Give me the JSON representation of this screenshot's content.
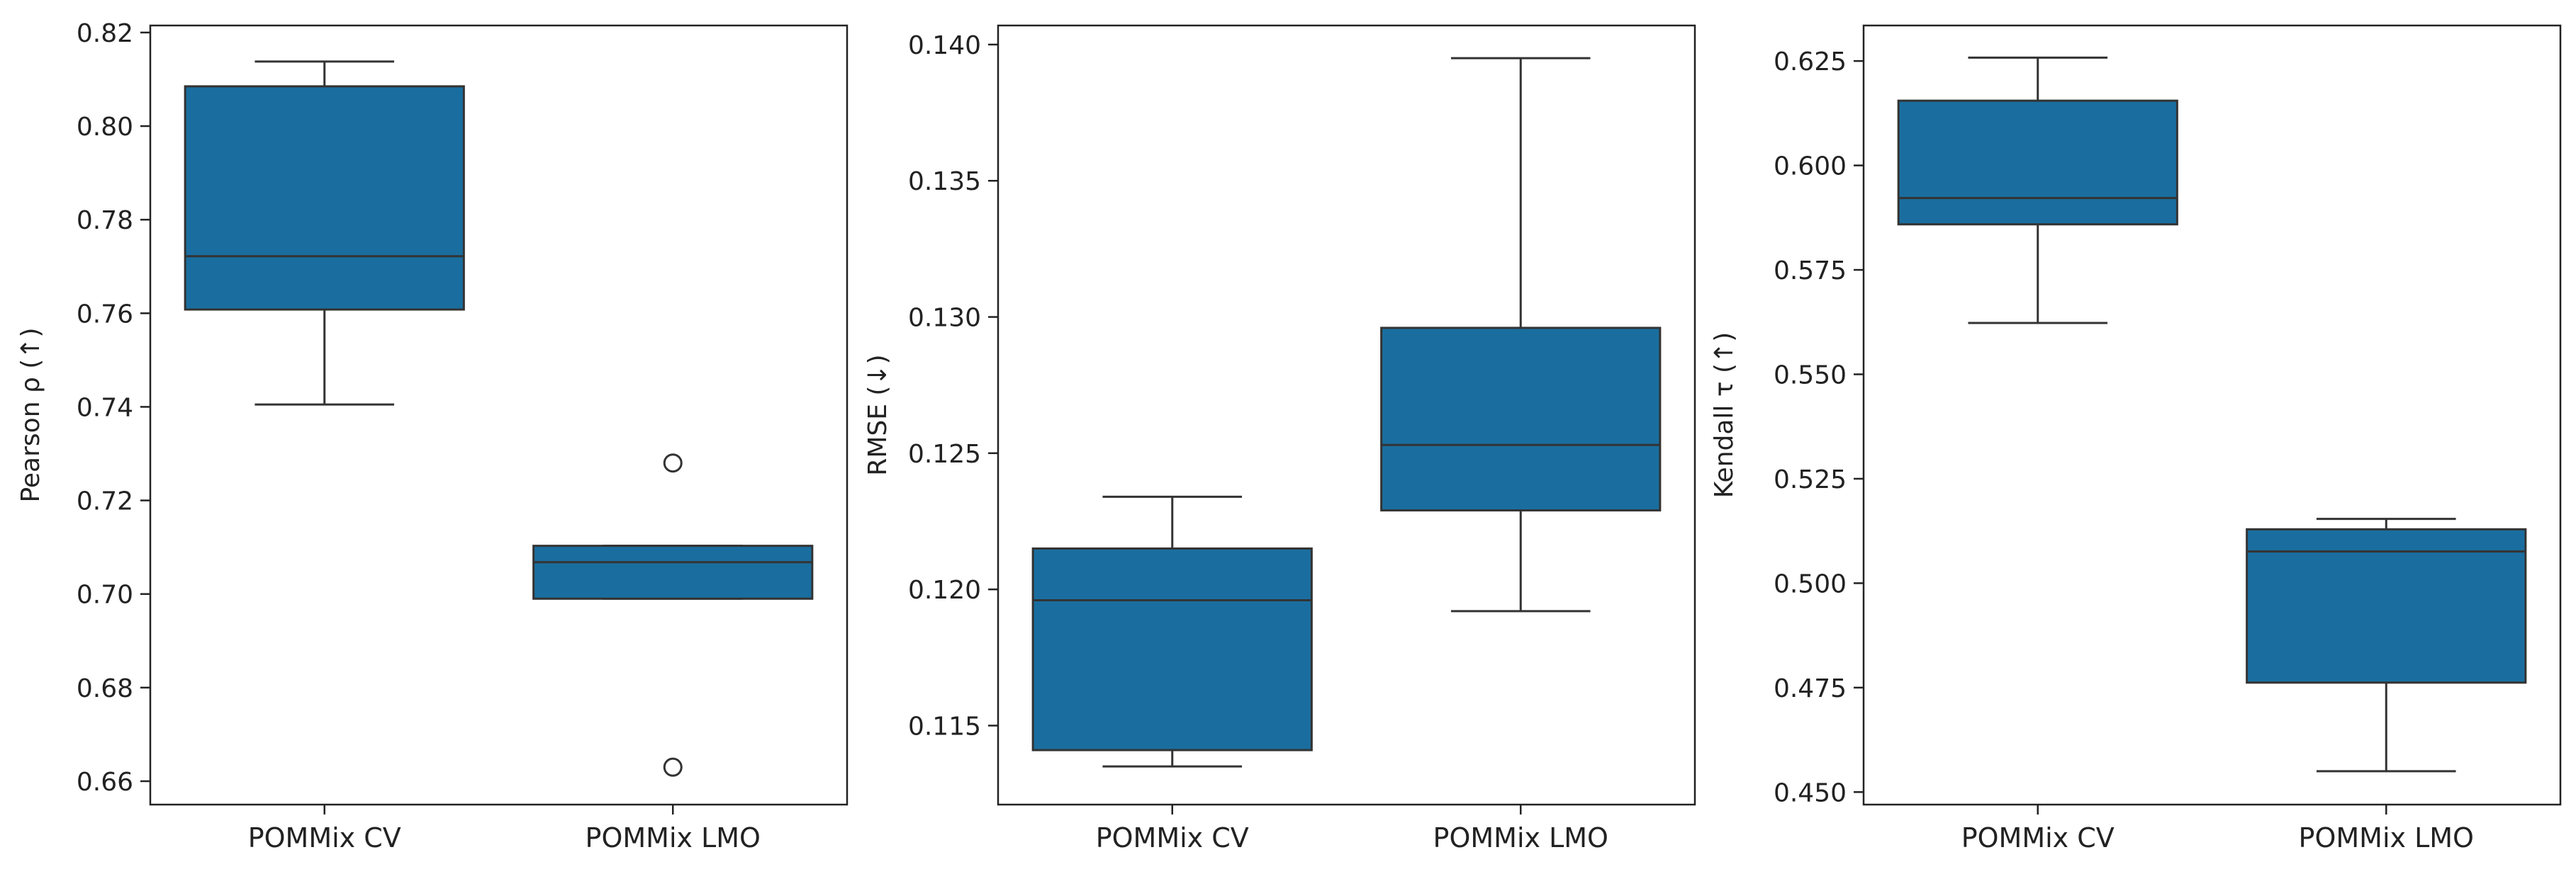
{
  "chart_data": [
    {
      "type": "box",
      "ylabel": "Pearson ρ (↑)",
      "categories": [
        "POMMix CV",
        "POMMix LMO"
      ],
      "ylim": [
        0.655,
        0.8215
      ],
      "yticks": [
        0.66,
        0.68,
        0.7,
        0.72,
        0.74,
        0.76,
        0.78,
        0.8,
        0.82
      ],
      "tick_format": 2,
      "boxes": [
        {
          "category": "POMMix CV",
          "whisker_low": 0.7405,
          "q1": 0.7608,
          "median": 0.7722,
          "q3": 0.8085,
          "whisker_high": 0.8138,
          "outliers": []
        },
        {
          "category": "POMMix LMO",
          "whisker_low": 0.699,
          "q1": 0.699,
          "median": 0.7068,
          "q3": 0.7103,
          "whisker_high": 0.7103,
          "outliers": [
            0.728,
            0.663
          ]
        }
      ]
    },
    {
      "type": "box",
      "ylabel": "RMSE (↓)",
      "categories": [
        "POMMix CV",
        "POMMix LMO"
      ],
      "ylim": [
        0.1121,
        0.1407
      ],
      "yticks": [
        0.115,
        0.12,
        0.125,
        0.13,
        0.135,
        0.14
      ],
      "tick_format": 3,
      "boxes": [
        {
          "category": "POMMix CV",
          "whisker_low": 0.1135,
          "q1": 0.1141,
          "median": 0.1196,
          "q3": 0.1215,
          "whisker_high": 0.1234,
          "outliers": []
        },
        {
          "category": "POMMix LMO",
          "whisker_low": 0.1192,
          "q1": 0.1229,
          "median": 0.1253,
          "q3": 0.1296,
          "whisker_high": 0.1395,
          "outliers": []
        }
      ]
    },
    {
      "type": "box",
      "ylabel": "Kendall τ (↑)",
      "categories": [
        "POMMix CV",
        "POMMix LMO"
      ],
      "ylim": [
        0.447,
        0.6335
      ],
      "yticks": [
        0.45,
        0.475,
        0.5,
        0.525,
        0.55,
        0.575,
        0.6,
        0.625
      ],
      "tick_format": 3,
      "boxes": [
        {
          "category": "POMMix CV",
          "whisker_low": 0.5623,
          "q1": 0.5859,
          "median": 0.5922,
          "q3": 0.6155,
          "whisker_high": 0.6258,
          "outliers": []
        },
        {
          "category": "POMMix LMO",
          "whisker_low": 0.455,
          "q1": 0.4762,
          "median": 0.5076,
          "q3": 0.5129,
          "whisker_high": 0.5154,
          "outliers": []
        }
      ]
    }
  ],
  "colors": {
    "box_fill": "#1a6e9f",
    "line": "#333333",
    "axes": "#222222"
  }
}
